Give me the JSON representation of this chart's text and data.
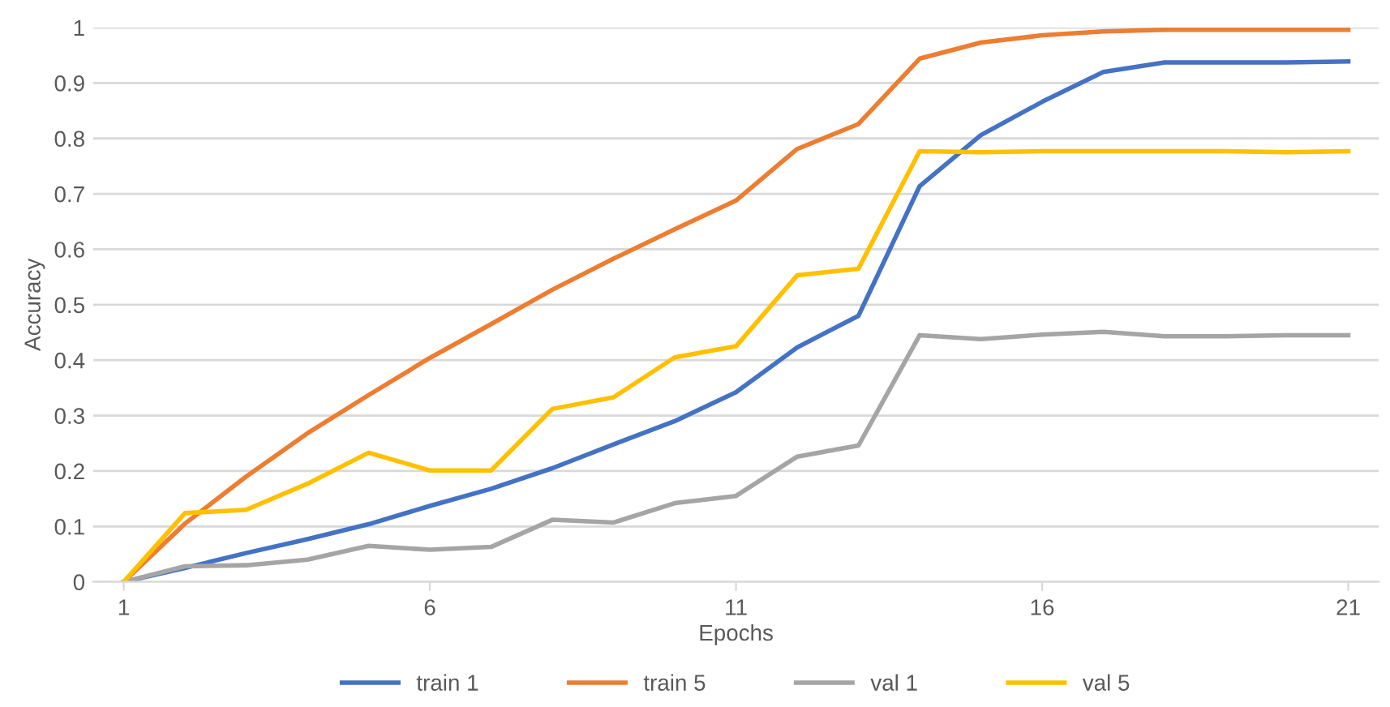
{
  "chart_data": {
    "type": "line",
    "xlabel": "Epochs",
    "ylabel": "Accuracy",
    "x": [
      1,
      2,
      3,
      4,
      5,
      6,
      7,
      8,
      9,
      10,
      11,
      12,
      13,
      14,
      15,
      16,
      17,
      18,
      19,
      20,
      21
    ],
    "xlim": [
      0.5,
      21.5
    ],
    "xticks": [
      1,
      6,
      11,
      16,
      21
    ],
    "ylim": [
      0,
      1
    ],
    "yticks": [
      0,
      0.1,
      0.2,
      0.3,
      0.4,
      0.5,
      0.6,
      0.7,
      0.8,
      0.9,
      1
    ],
    "grid": "y",
    "legend": "bottom",
    "marker": "none",
    "line_style": "solid",
    "series": [
      {
        "name": "train 1",
        "color": "#4472c4",
        "values": [
          0,
          0.025,
          0.052,
          0.077,
          0.104,
          0.137,
          0.168,
          0.205,
          0.248,
          0.29,
          0.342,
          0.423,
          0.48,
          0.714,
          0.806,
          0.866,
          0.92,
          0.937,
          0.937,
          0.937,
          0.939
        ]
      },
      {
        "name": "train 5",
        "color": "#ed7d31",
        "values": [
          0,
          0.105,
          0.19,
          0.268,
          0.337,
          0.404,
          0.465,
          0.527,
          0.583,
          0.636,
          0.688,
          0.781,
          0.826,
          0.944,
          0.973,
          0.986,
          0.993,
          0.996,
          0.996,
          0.996,
          0.996
        ]
      },
      {
        "name": "val 1",
        "color": "#a5a5a5",
        "values": [
          0,
          0.028,
          0.03,
          0.04,
          0.065,
          0.058,
          0.063,
          0.112,
          0.107,
          0.142,
          0.155,
          0.226,
          0.246,
          0.445,
          0.438,
          0.446,
          0.451,
          0.443,
          0.443,
          0.445,
          0.445
        ]
      },
      {
        "name": "val 5",
        "color": "#ffc000",
        "values": [
          0,
          0.124,
          0.13,
          0.177,
          0.233,
          0.201,
          0.201,
          0.312,
          0.333,
          0.405,
          0.425,
          0.553,
          0.565,
          0.777,
          0.775,
          0.777,
          0.777,
          0.777,
          0.777,
          0.775,
          0.777
        ]
      }
    ]
  }
}
